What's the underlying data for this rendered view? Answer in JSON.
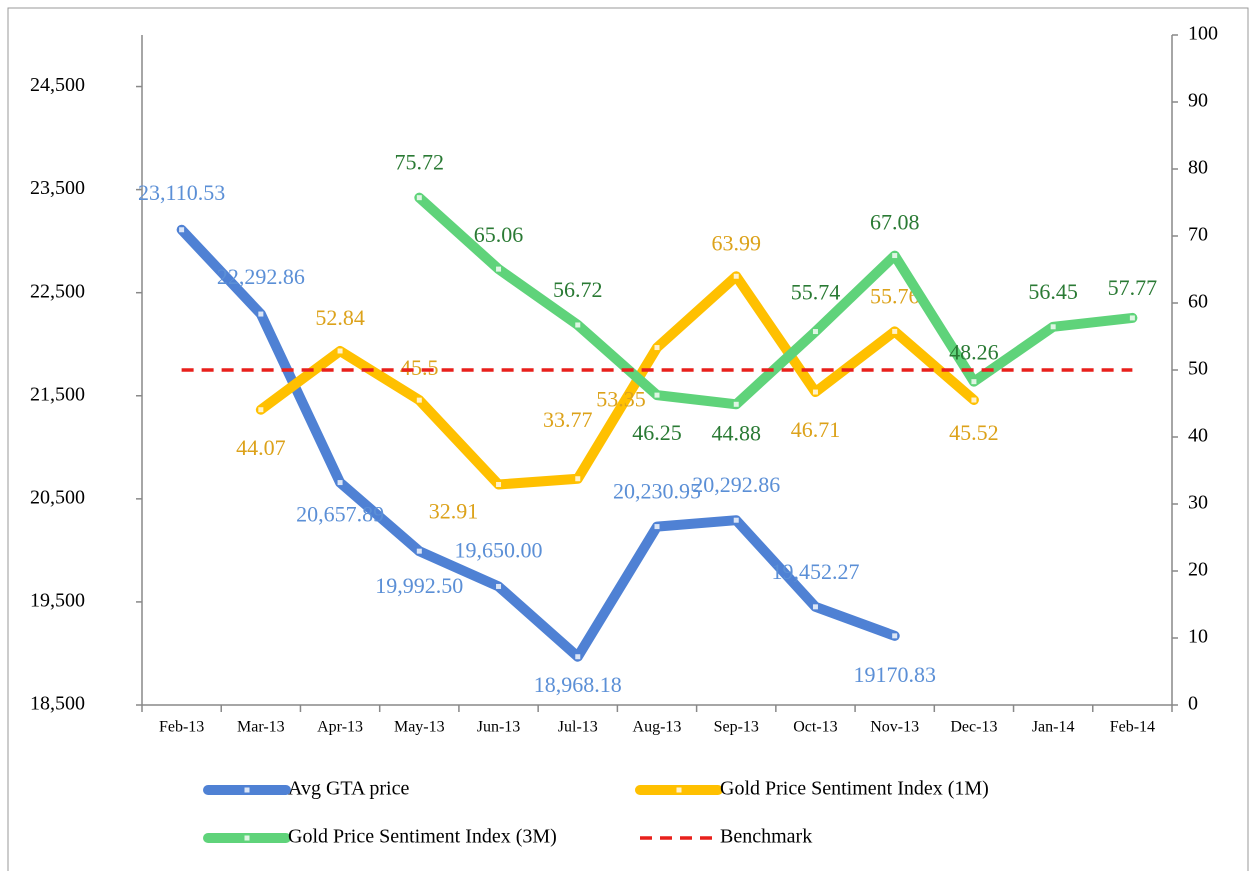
{
  "chart_data": {
    "type": "line",
    "categories": [
      "Feb-13",
      "Mar-13",
      "Apr-13",
      "May-13",
      "Jun-13",
      "Jul-13",
      "Aug-13",
      "Sep-13",
      "Oct-13",
      "Nov-13",
      "Dec-13",
      "Jan-14",
      "Feb-14"
    ],
    "ylim": [
      18500,
      25000
    ],
    "yticks": [
      {
        "value": 18500,
        "label": "18,500"
      },
      {
        "value": 19500,
        "label": "19,500"
      },
      {
        "value": 20500,
        "label": "20,500"
      },
      {
        "value": 21500,
        "label": "21,500"
      },
      {
        "value": 22500,
        "label": "22,500"
      },
      {
        "value": 23500,
        "label": "23,500"
      },
      {
        "value": 24500,
        "label": "24,500"
      }
    ],
    "y2lim": [
      0,
      100
    ],
    "y2ticks": [
      0,
      10,
      20,
      30,
      40,
      50,
      60,
      70,
      80,
      90,
      100
    ],
    "legend": "bottom",
    "series": [
      {
        "name": "Avg GTA price",
        "color": "#4f81d4",
        "label_color": "#5b8fd6",
        "axis": "y",
        "values": [
          23110.53,
          22292.86,
          20657.89,
          19992.5,
          19650.0,
          18968.18,
          20230.95,
          20292.86,
          19452.27,
          19170.83,
          null,
          null,
          null
        ],
        "value_labels": [
          "23,110.53",
          "22,292.86",
          "20,657.89",
          "19,992.50",
          "19,650.00",
          "18,968.18",
          "20,230.95",
          "20,292.86",
          "19,452.27",
          "19170.83",
          null,
          null,
          null
        ]
      },
      {
        "name": "Gold Price Sentiment Index (1M)",
        "color": "#ffc000",
        "label_color": "#dca21a",
        "axis": "y2",
        "values": [
          null,
          44.07,
          52.84,
          45.5,
          32.91,
          33.77,
          53.35,
          63.99,
          46.71,
          55.76,
          45.52,
          null,
          null
        ]
      },
      {
        "name": "Gold Price Sentiment Index (3M)",
        "color": "#5fd37a",
        "label_color": "#2a7a34",
        "axis": "y2",
        "values": [
          null,
          null,
          null,
          75.72,
          65.06,
          56.72,
          46.25,
          44.88,
          55.74,
          67.08,
          48.26,
          56.45,
          57.77
        ]
      },
      {
        "name": "Benchmark",
        "color": "#e8201c",
        "axis": "y2",
        "dashed": true,
        "values": [
          50,
          50,
          50,
          50,
          50,
          50,
          50,
          50,
          50,
          50,
          50,
          50,
          50
        ]
      }
    ]
  }
}
